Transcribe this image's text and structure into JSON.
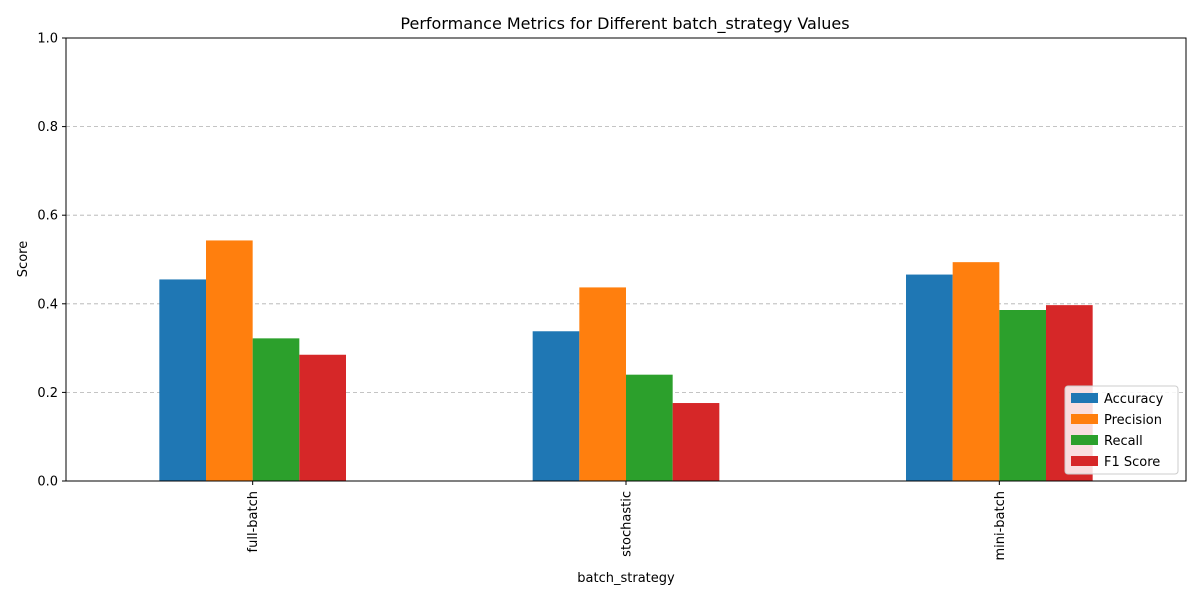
{
  "chart_data": {
    "type": "bar",
    "title": "Performance Metrics for Different batch_strategy Values",
    "xlabel": "batch_strategy",
    "ylabel": "Score",
    "ylim": [
      0,
      1
    ],
    "yticks": [
      "0.0",
      "0.2",
      "0.4",
      "0.6",
      "0.8",
      "1.0"
    ],
    "grid": "y-dashed",
    "legend_position": "bottom-right",
    "categories": [
      "full-batch",
      "stochastic",
      "mini-batch"
    ],
    "series": [
      {
        "name": "Accuracy",
        "color": "#1f77b4",
        "values": [
          0.455,
          0.338,
          0.466
        ]
      },
      {
        "name": "Precision",
        "color": "#ff7f0e",
        "values": [
          0.543,
          0.437,
          0.494
        ]
      },
      {
        "name": "Recall",
        "color": "#2ca02c",
        "values": [
          0.322,
          0.24,
          0.386
        ]
      },
      {
        "name": "F1 Score",
        "color": "#d62728",
        "values": [
          0.285,
          0.176,
          0.397
        ]
      }
    ]
  }
}
